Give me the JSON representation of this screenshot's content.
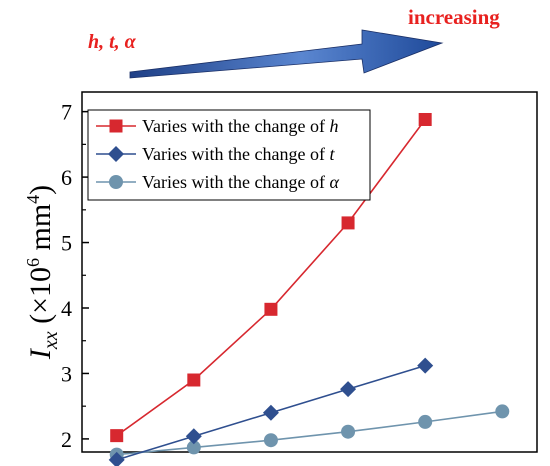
{
  "annotations": {
    "params": "h, t, α",
    "increasing": "increasing"
  },
  "chart_data": {
    "type": "line",
    "title": "",
    "xlabel": "",
    "ylabel_main": "I",
    "ylabel_sub": "xx",
    "ylabel_unit_pre": " (×10",
    "ylabel_exp1": "6",
    "ylabel_unit_mid": " mm",
    "ylabel_exp2": "4",
    "ylabel_unit_post": ")",
    "ylim": [
      1.8,
      7.3
    ],
    "yticks": [
      "2",
      "3",
      "4",
      "5",
      "6",
      "7"
    ],
    "grid": false,
    "legend_position": "top-left",
    "series": [
      {
        "name_prefix": "Varies with the change of ",
        "name_var": "h",
        "marker": "square",
        "color": "#d7282f",
        "x": [
          1,
          2,
          3,
          4,
          5
        ],
        "values": [
          2.05,
          2.9,
          3.98,
          5.3,
          6.88
        ]
      },
      {
        "name_prefix": "Varies with the change of ",
        "name_var": "t",
        "marker": "diamond",
        "color": "#2f4f8f",
        "x": [
          1,
          2,
          3,
          4,
          5
        ],
        "values": [
          1.68,
          2.04,
          2.4,
          2.76,
          3.12
        ]
      },
      {
        "name_prefix": "Varies with the change of ",
        "name_var": "α",
        "marker": "circle",
        "color": "#6f94ad",
        "x": [
          1,
          2,
          3,
          4,
          5,
          6
        ],
        "values": [
          1.76,
          1.87,
          1.98,
          2.11,
          2.26,
          2.42
        ]
      }
    ]
  }
}
